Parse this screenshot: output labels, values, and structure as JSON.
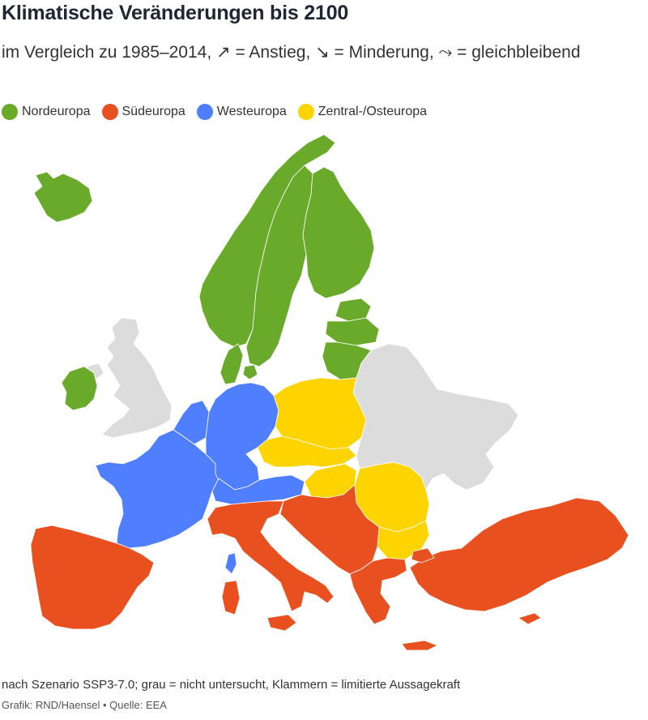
{
  "header": {
    "title": "Klimatische Veränderungen bis 2100",
    "subtitle": "im Vergleich zu 1985–2014, ↗ = Anstieg, ↘ = Minderung, ⤳ = gleichbleibend"
  },
  "legend": {
    "items": [
      {
        "label": "Nordeuropa",
        "color": "#6aaa2a"
      },
      {
        "label": "Südeuropa",
        "color": "#e8501f"
      },
      {
        "label": "Westeuropa",
        "color": "#4f7fff"
      },
      {
        "label": "Zentral-/Osteuropa",
        "color": "#fdd300"
      }
    ]
  },
  "colors": {
    "nordeuropa": "#6aaa2a",
    "suedeuropa": "#e8501f",
    "westeuropa": "#4f7fff",
    "zentral_osteuropa": "#fdd300",
    "not_studied": "#dcdcdc"
  },
  "footer": {
    "note": "nach Szenario SSP3-7.0; grau = nicht untersucht, Klammern = limitierte Aussagekraft",
    "credit": "Grafik: RND/Haensel • Quelle: EEA"
  }
}
